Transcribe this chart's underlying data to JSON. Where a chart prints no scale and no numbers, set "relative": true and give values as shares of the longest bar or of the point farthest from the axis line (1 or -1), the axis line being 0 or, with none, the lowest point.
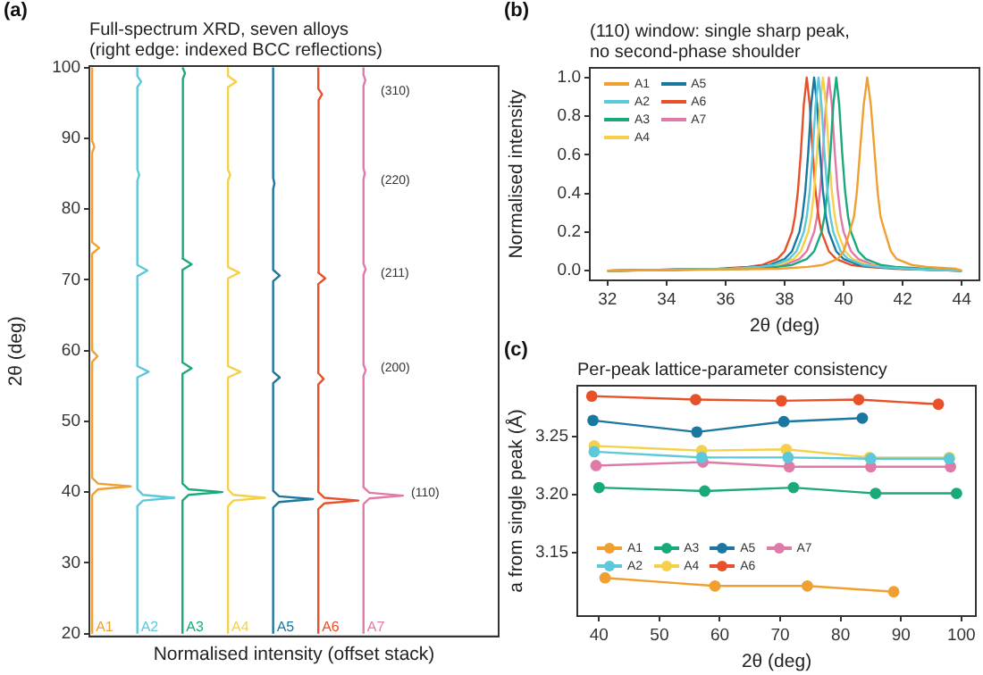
{
  "chart_data": [
    {
      "type": "line",
      "orientation": "horizontal",
      "relative": true,
      "title": "Full-spectrum XRD, seven alloys\n(right edge: indexed BCC reflections)",
      "xlabel": "Normalised intensity (offset stack)",
      "ylabel": "2θ (deg)",
      "ylim": [
        19.6,
        100.2
      ],
      "yticks": [
        20,
        30,
        40,
        50,
        60,
        70,
        80,
        90,
        100
      ],
      "annotations": [
        "(a)",
        "(310)",
        "(220)",
        "(211)",
        "(200)",
        "(110)"
      ],
      "series": [
        {
          "name": "A1",
          "color": "#f0a030",
          "x": [
            20,
            39.6,
            40.4,
            40.8,
            41.2,
            42,
            58.4,
            59.2,
            60,
            73.7,
            74.5,
            75.3,
            88,
            88.8,
            89.6,
            100
          ],
          "values": [
            0.009,
            0.009,
            0.028,
            0.132,
            0.028,
            0.009,
            0.009,
            0.026,
            0.009,
            0.009,
            0.031,
            0.009,
            0.009,
            0.016,
            0.009,
            0.009
          ]
        },
        {
          "name": "A2",
          "color": "#5bc8dc",
          "x": [
            20,
            38,
            38.8,
            39.2,
            39.6,
            40.4,
            56.2,
            57,
            57.8,
            70.5,
            71.3,
            72.1,
            84,
            84.8,
            85.6,
            97.2,
            98,
            98.8,
            100
          ],
          "values": [
            0.153,
            0.153,
            0.171,
            0.271,
            0.171,
            0.153,
            0.153,
            0.189,
            0.153,
            0.153,
            0.185,
            0.153,
            0.153,
            0.159,
            0.153,
            0.153,
            0.165,
            0.153,
            0.153
          ]
        },
        {
          "name": "A3",
          "color": "#1aa97a",
          "x": [
            20,
            38.8,
            39.6,
            40,
            40.4,
            41.2,
            56.7,
            57.5,
            58.3,
            71.4,
            72.2,
            73,
            85,
            85.8,
            86.6,
            98.4,
            99.2,
            100
          ],
          "values": [
            0.297,
            0.297,
            0.316,
            0.424,
            0.316,
            0.297,
            0.297,
            0.326,
            0.297,
            0.297,
            0.326,
            0.297,
            0.297,
            0.302,
            0.297,
            0.297,
            0.305,
            0.297
          ]
        },
        {
          "name": "A4",
          "color": "#f5d04a",
          "x": [
            20,
            38,
            38.8,
            39.2,
            39.6,
            40.4,
            56.2,
            57,
            57.8,
            70.2,
            71,
            71.8,
            84,
            84.8,
            85.6,
            97.2,
            98,
            98.8,
            100
          ],
          "values": [
            0.442,
            0.442,
            0.459,
            0.56,
            0.459,
            0.442,
            0.442,
            0.482,
            0.442,
            0.442,
            0.478,
            0.442,
            0.442,
            0.449,
            0.442,
            0.442,
            0.468,
            0.442,
            0.442
          ]
        },
        {
          "name": "A5",
          "color": "#1a78a0",
          "x": [
            20,
            37.8,
            38.6,
            39,
            39.4,
            40.2,
            55.4,
            56.2,
            57,
            69.8,
            70.6,
            71.4,
            82.8,
            83.6,
            84.4,
            100
          ],
          "values": [
            0.586,
            0.586,
            0.605,
            0.713,
            0.605,
            0.586,
            0.586,
            0.607,
            0.586,
            0.586,
            0.607,
            0.586,
            0.586,
            0.59,
            0.586,
            0.586
          ]
        },
        {
          "name": "A6",
          "color": "#e8502a",
          "x": [
            20,
            37.6,
            38.4,
            38.8,
            39.2,
            40,
            55.2,
            56,
            56.8,
            69.4,
            70.2,
            71,
            82.2,
            83,
            83.8,
            95.4,
            96.2,
            97,
            100
          ],
          "values": [
            0.73,
            0.73,
            0.749,
            0.858,
            0.749,
            0.73,
            0.73,
            0.747,
            0.73,
            0.73,
            0.752,
            0.73,
            0.73,
            0.734,
            0.73,
            0.73,
            0.742,
            0.73,
            0.73
          ]
        },
        {
          "name": "A7",
          "color": "#e07aa8",
          "x": [
            20,
            38.3,
            39.1,
            39.5,
            39.9,
            40.7,
            56.4,
            57.2,
            58,
            70.7,
            71.5,
            72.3,
            84.2,
            85,
            85.8,
            97.4,
            98.2,
            99,
            100
          ],
          "values": [
            0.874,
            0.874,
            0.893,
            1,
            0.893,
            0.874,
            0.874,
            0.881,
            0.874,
            0.874,
            0.881,
            0.874,
            0.874,
            0.878,
            0.874,
            0.874,
            0.88,
            0.874,
            0.874
          ]
        }
      ]
    },
    {
      "type": "line",
      "title": "(110) window: single sharp peak,\nno second-phase shoulder",
      "xlabel": "2θ (deg)",
      "ylabel": "Normalised intensity",
      "legend": "top left",
      "xlim": [
        31.4,
        44.6
      ],
      "ylim": [
        -0.05,
        1.05
      ],
      "xticks": [
        32,
        34,
        36,
        38,
        40,
        42,
        44
      ],
      "yticks": [
        {
          "value": 0,
          "label": "0.0"
        },
        {
          "value": 0.2,
          "label": "0.2"
        },
        {
          "value": 0.4,
          "label": "0.4"
        },
        {
          "value": 0.6,
          "label": "0.6"
        },
        {
          "value": 0.8,
          "label": "0.8"
        },
        {
          "value": 1,
          "label": "1.0"
        }
      ],
      "annotations": [
        "(b)"
      ],
      "series": [
        {
          "name": "A1",
          "color": "#f0a030",
          "x": [
            32,
            37.8,
            38.8,
            39.3,
            39.8,
            40.0,
            40.2,
            40.35,
            40.45,
            40.55,
            40.68,
            40.8,
            40.92,
            41.05,
            41.15,
            41.25,
            41.4,
            41.6,
            41.8,
            42.3,
            42.8,
            43.8,
            44
          ],
          "values": [
            0,
            0.01,
            0.02,
            0.03,
            0.06,
            0.1,
            0.2,
            0.28,
            0.41,
            0.61,
            0.86,
            1,
            0.86,
            0.61,
            0.41,
            0.28,
            0.2,
            0.1,
            0.06,
            0.03,
            0.02,
            0.01,
            0
          ]
        },
        {
          "name": "A2",
          "color": "#5bc8dc",
          "x": [
            32,
            36.15,
            37.15,
            37.65,
            38.15,
            38.4,
            38.65,
            38.75,
            38.85,
            38.95,
            39.05,
            39.15,
            39.25,
            39.35,
            39.45,
            39.55,
            39.65,
            39.9,
            40.15,
            40.65,
            41.15,
            42.15,
            44
          ],
          "values": [
            0,
            0.01,
            0.02,
            0.03,
            0.06,
            0.1,
            0.2,
            0.28,
            0.41,
            0.61,
            0.86,
            1,
            0.86,
            0.61,
            0.41,
            0.28,
            0.2,
            0.1,
            0.06,
            0.03,
            0.02,
            0.01,
            0
          ]
        },
        {
          "name": "A3",
          "color": "#1aa97a",
          "x": [
            32,
            36.75,
            37.75,
            38.25,
            38.75,
            39.0,
            39.25,
            39.35,
            39.45,
            39.55,
            39.65,
            39.75,
            39.85,
            39.95,
            40.05,
            40.15,
            40.25,
            40.5,
            40.75,
            41.25,
            41.75,
            42.75,
            44
          ],
          "values": [
            0,
            0.01,
            0.02,
            0.03,
            0.06,
            0.1,
            0.2,
            0.28,
            0.41,
            0.61,
            0.86,
            1,
            0.86,
            0.61,
            0.41,
            0.28,
            0.2,
            0.1,
            0.06,
            0.03,
            0.02,
            0.01,
            0
          ]
        },
        {
          "name": "A4",
          "color": "#f5d04a",
          "x": [
            32,
            36.3,
            37.3,
            37.8,
            38.3,
            38.55,
            38.8,
            38.9,
            39.0,
            39.1,
            39.2,
            39.3,
            39.4,
            39.5,
            39.6,
            39.7,
            39.8,
            40.05,
            40.3,
            40.8,
            41.3,
            42.3,
            44
          ],
          "values": [
            0,
            0.01,
            0.02,
            0.03,
            0.06,
            0.1,
            0.2,
            0.28,
            0.41,
            0.61,
            0.86,
            1,
            0.86,
            0.61,
            0.41,
            0.28,
            0.2,
            0.1,
            0.06,
            0.03,
            0.02,
            0.01,
            0
          ]
        },
        {
          "name": "A5",
          "color": "#1a78a0",
          "x": [
            32,
            36,
            37,
            37.5,
            38,
            38.25,
            38.5,
            38.6,
            38.7,
            38.8,
            38.9,
            39,
            39.1,
            39.2,
            39.3,
            39.4,
            39.5,
            39.75,
            40,
            40.5,
            41,
            42,
            44
          ],
          "values": [
            0,
            0.01,
            0.02,
            0.03,
            0.06,
            0.1,
            0.2,
            0.28,
            0.41,
            0.61,
            0.86,
            1,
            0.86,
            0.61,
            0.41,
            0.28,
            0.2,
            0.1,
            0.06,
            0.03,
            0.02,
            0.01,
            0
          ]
        },
        {
          "name": "A6",
          "color": "#e8502a",
          "x": [
            32,
            35.75,
            36.75,
            37.25,
            37.75,
            38,
            38.25,
            38.35,
            38.45,
            38.55,
            38.65,
            38.75,
            38.85,
            38.95,
            39.05,
            39.15,
            39.25,
            39.5,
            39.75,
            40.25,
            40.75,
            41.75,
            44
          ],
          "values": [
            0,
            0.01,
            0.02,
            0.03,
            0.06,
            0.1,
            0.2,
            0.28,
            0.41,
            0.61,
            0.86,
            1,
            0.86,
            0.61,
            0.41,
            0.28,
            0.2,
            0.1,
            0.06,
            0.03,
            0.02,
            0.01,
            0
          ]
        },
        {
          "name": "A7",
          "color": "#e07aa8",
          "x": [
            32,
            36.5,
            37.5,
            38,
            38.5,
            38.75,
            39,
            39.1,
            39.2,
            39.3,
            39.4,
            39.5,
            39.6,
            39.7,
            39.8,
            39.9,
            40,
            40.25,
            40.5,
            41,
            41.5,
            42.5,
            44
          ],
          "values": [
            0,
            0.01,
            0.02,
            0.03,
            0.06,
            0.1,
            0.2,
            0.28,
            0.41,
            0.61,
            0.86,
            1,
            0.86,
            0.61,
            0.41,
            0.28,
            0.2,
            0.1,
            0.06,
            0.03,
            0.02,
            0.01,
            0
          ]
        }
      ]
    },
    {
      "type": "line",
      "title": "Per-peak lattice-parameter consistency",
      "xlabel": "2θ (deg)",
      "ylabel": "a from single peak (Å)",
      "legend": "left",
      "marker": "circle",
      "xlim": [
        36.4,
        102.4
      ],
      "ylim": [
        3.095,
        3.294
      ],
      "xticks": [
        40,
        50,
        60,
        70,
        80,
        90,
        100
      ],
      "yticks": [
        {
          "value": 3.15,
          "label": "3.15"
        },
        {
          "value": 3.2,
          "label": "3.20"
        },
        {
          "value": 3.25,
          "label": "3.25"
        }
      ],
      "annotations": [
        "(c)"
      ],
      "series": [
        {
          "name": "A1",
          "color": "#f0a030",
          "x": [
            41,
            59.2,
            74.5,
            88.8
          ],
          "values": [
            3.128,
            3.121,
            3.121,
            3.116
          ]
        },
        {
          "name": "A2",
          "color": "#5bc8dc",
          "x": [
            39.2,
            57,
            71.3,
            85,
            98
          ],
          "values": [
            3.237,
            3.232,
            3.232,
            3.231,
            3.231
          ]
        },
        {
          "name": "A3",
          "color": "#1aa97a",
          "x": [
            40,
            57.5,
            72.2,
            85.8,
            99.2
          ],
          "values": [
            3.206,
            3.203,
            3.206,
            3.201,
            3.201
          ]
        },
        {
          "name": "A4",
          "color": "#f5d04a",
          "x": [
            39.2,
            57,
            71,
            84.8,
            98
          ],
          "values": [
            3.242,
            3.238,
            3.239,
            3.232,
            3.232
          ]
        },
        {
          "name": "A5",
          "color": "#1a78a0",
          "x": [
            39,
            56.2,
            70.6,
            83.6
          ],
          "values": [
            3.264,
            3.254,
            3.263,
            3.266
          ]
        },
        {
          "name": "A6",
          "color": "#e8502a",
          "x": [
            38.8,
            56,
            70.2,
            83,
            96.2
          ],
          "values": [
            3.285,
            3.282,
            3.281,
            3.282,
            3.278
          ]
        },
        {
          "name": "A7",
          "color": "#e07aa8",
          "x": [
            39.5,
            57.2,
            71.5,
            85,
            98.2
          ],
          "values": [
            3.225,
            3.228,
            3.224,
            3.224,
            3.224
          ]
        }
      ]
    }
  ]
}
